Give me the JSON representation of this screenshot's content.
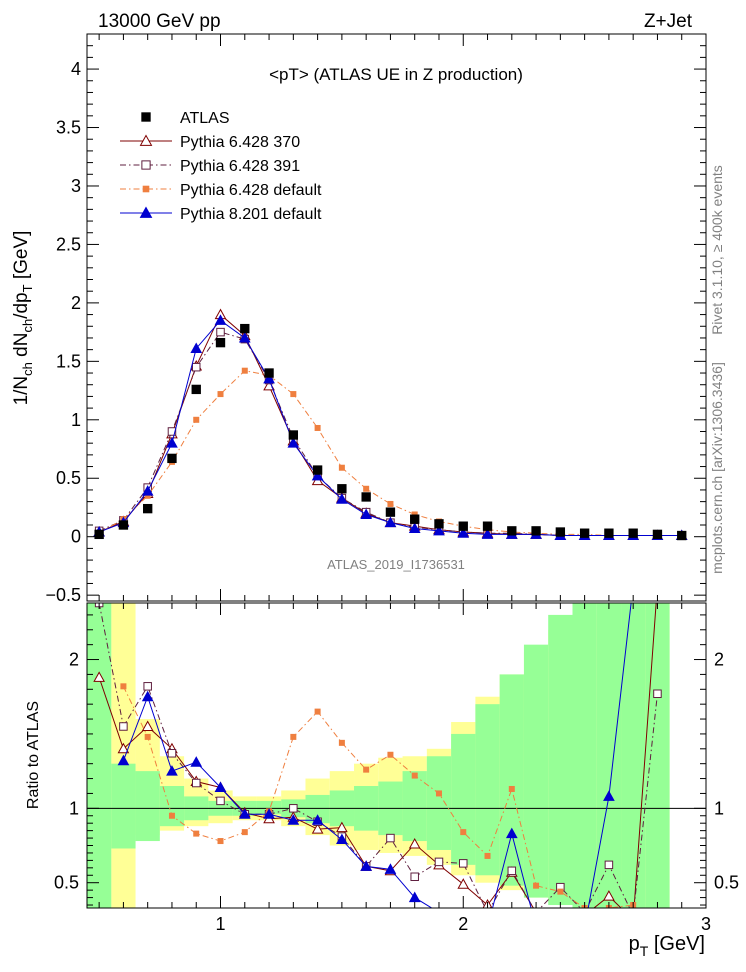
{
  "header": {
    "energy_label": "13000 GeV pp",
    "process_label": "Z+Jet"
  },
  "side": {
    "rivet_label": "Rivet 3.1.10, ≥ 400k events",
    "mcplots_label": "mcplots.cern.ch [arXiv:1306.3436]"
  },
  "colors": {
    "atlas": "#000000",
    "p370": "#7f0000",
    "p391": "#5f1f3f",
    "p6def": "#ef7f3f",
    "p8def": "#0000d0",
    "band_yellow": "#ffff96",
    "band_green": "#96ff96"
  },
  "chart_data": {
    "type": "line",
    "title": "<pT> (ATLAS UE in Z production)",
    "ylabel_main": "1/N_ch dN_ch/dp_T [GeV]",
    "ylabel_ratio": "Ratio to ATLAS",
    "xlabel": "p_T [GeV]",
    "analysis_label": "ATLAS_2019_I1736531",
    "xlim": [
      0.45,
      3.0
    ],
    "ylim_main": [
      -0.55,
      4.3
    ],
    "ylim_ratio": [
      0.33,
      2.38
    ],
    "xticks": [
      1,
      2,
      3
    ],
    "yticks_main": [
      -0.5,
      0,
      0.5,
      1,
      1.5,
      2,
      2.5,
      3,
      3.5,
      4
    ],
    "yticks_ratio": [
      0.5,
      1,
      2
    ],
    "x": [
      0.5,
      0.6,
      0.7,
      0.8,
      0.9,
      1.0,
      1.1,
      1.2,
      1.3,
      1.4,
      1.5,
      1.6,
      1.7,
      1.8,
      1.9,
      2.0,
      2.1,
      2.2,
      2.3,
      2.4,
      2.5,
      2.6,
      2.7,
      2.8,
      2.9
    ],
    "data": {
      "name": "ATLAS",
      "values": [
        0.02,
        0.1,
        0.24,
        0.67,
        1.26,
        1.66,
        1.78,
        1.4,
        0.87,
        0.57,
        0.41,
        0.34,
        0.21,
        0.15,
        0.11,
        0.09,
        0.09,
        0.05,
        0.05,
        0.04,
        0.03,
        0.03,
        0.03,
        0.02,
        0.01
      ]
    },
    "series": [
      {
        "name": "Pythia 6.428 370",
        "key": "p370",
        "marker": "triangle-open",
        "dash": "solid",
        "values": [
          0.04,
          0.13,
          0.37,
          0.88,
          1.46,
          1.9,
          1.72,
          1.29,
          0.82,
          0.48,
          0.33,
          0.2,
          0.12,
          0.09,
          0.06,
          0.04,
          0.03,
          0.02,
          0.02,
          0.01,
          0.01,
          0.01,
          0.01,
          0.01,
          0.01
        ],
        "ratio": [
          1.88,
          1.4,
          1.55,
          1.4,
          1.18,
          1.14,
          0.97,
          0.93,
          0.94,
          0.86,
          0.87,
          0.61,
          0.58,
          0.76,
          0.62,
          0.49,
          0.35,
          0.57,
          0.3,
          0.28,
          0.28,
          0.41,
          0.25,
          2.5,
          null
        ]
      },
      {
        "name": "Pythia 6.428 391",
        "key": "p391",
        "marker": "square-open",
        "dash": "dashdot",
        "values": [
          0.05,
          0.14,
          0.42,
          0.9,
          1.45,
          1.75,
          1.69,
          1.34,
          0.84,
          0.52,
          0.33,
          0.21,
          0.12,
          0.08,
          0.06,
          0.04,
          0.03,
          0.03,
          0.02,
          0.01,
          0.01,
          0.01,
          0.01,
          0.01,
          0.01
        ],
        "ratio": [
          2.38,
          1.55,
          1.82,
          1.37,
          1.17,
          1.05,
          0.96,
          0.96,
          1.0,
          0.91,
          0.81,
          0.61,
          0.8,
          0.54,
          0.64,
          0.63,
          0.3,
          0.58,
          0.3,
          0.47,
          0.3,
          0.62,
          0.28,
          1.77,
          null
        ]
      },
      {
        "name": "Pythia 6.428 default",
        "key": "p6def",
        "marker": "square-filled",
        "dash": "dashdot",
        "values": [
          0.03,
          0.15,
          0.35,
          0.64,
          1.0,
          1.22,
          1.42,
          1.38,
          1.22,
          0.93,
          0.59,
          0.41,
          0.28,
          0.19,
          0.13,
          0.09,
          0.06,
          0.04,
          0.03,
          0.02,
          0.02,
          0.01,
          0.01,
          0.01,
          0.01
        ],
        "ratio": [
          null,
          1.82,
          1.48,
          0.95,
          0.83,
          0.78,
          0.84,
          0.98,
          1.48,
          1.65,
          1.44,
          1.26,
          1.36,
          1.22,
          1.1,
          0.84,
          0.68,
          1.13,
          0.48,
          0.44,
          0.33,
          0.33,
          0.35,
          null,
          null
        ]
      },
      {
        "name": "Pythia 8.201 default",
        "key": "p8def",
        "marker": "triangle-filled",
        "dash": "solid",
        "values": [
          0.04,
          0.12,
          0.39,
          0.8,
          1.61,
          1.85,
          1.7,
          1.35,
          0.8,
          0.52,
          0.32,
          0.19,
          0.12,
          0.07,
          0.05,
          0.03,
          0.02,
          0.02,
          0.02,
          0.01,
          0.01,
          0.01,
          0.01,
          0.01,
          0.01
        ],
        "ratio": [
          null,
          1.32,
          1.75,
          1.25,
          1.31,
          1.14,
          0.96,
          0.96,
          0.92,
          0.92,
          0.79,
          0.61,
          0.59,
          0.4,
          0.3,
          0.2,
          0.2,
          0.83,
          0.2,
          0.2,
          0.2,
          1.08,
          2.5,
          null,
          null
        ]
      }
    ],
    "bands": {
      "yellow_lo": [
        0.33,
        0.33,
        0.82,
        0.85,
        0.88,
        0.9,
        0.92,
        0.92,
        0.88,
        0.82,
        0.75,
        0.72,
        0.7,
        0.68,
        0.62,
        0.55,
        0.5,
        0.45,
        0.4,
        0.38,
        0.35,
        0.33,
        0.33,
        0.33
      ],
      "yellow_hi": [
        2.38,
        2.38,
        1.6,
        1.35,
        1.2,
        1.12,
        1.08,
        1.08,
        1.12,
        1.2,
        1.25,
        1.3,
        1.34,
        1.35,
        1.4,
        1.58,
        1.75,
        1.9,
        2.05,
        2.2,
        2.3,
        2.38,
        2.38,
        2.38
      ],
      "green_lo": [
        0.33,
        0.73,
        0.78,
        0.88,
        0.92,
        0.95,
        0.95,
        0.96,
        0.94,
        0.9,
        0.88,
        0.85,
        0.82,
        0.78,
        0.72,
        0.62,
        0.55,
        0.48,
        0.4,
        0.35,
        0.33,
        0.33,
        0.33,
        0.33
      ],
      "green_hi": [
        2.38,
        1.3,
        1.25,
        1.15,
        1.08,
        1.05,
        1.05,
        1.05,
        1.06,
        1.09,
        1.12,
        1.15,
        1.18,
        1.25,
        1.35,
        1.5,
        1.7,
        1.9,
        2.1,
        2.3,
        2.38,
        2.38,
        2.38,
        2.38
      ]
    }
  }
}
